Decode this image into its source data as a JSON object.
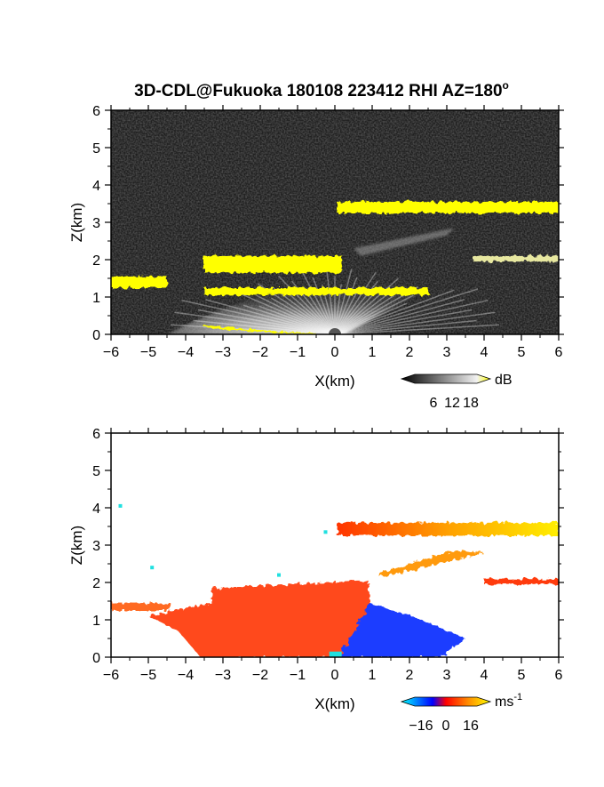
{
  "title": "3D-CDL@Fukuoka 180108 223412 RHI AZ=180",
  "title_superscript": "o",
  "chart_data": [
    {
      "type": "heatmap",
      "panel": "reflectivity",
      "xlabel": "X(km)",
      "ylabel": "Z(km)",
      "xlim": [
        -6,
        6
      ],
      "ylim": [
        0,
        6
      ],
      "xticks": [
        "-6",
        "-5",
        "-4",
        "-3",
        "-2",
        "-1",
        "0",
        "1",
        "2",
        "3",
        "4",
        "5",
        "6"
      ],
      "yticks": [
        "0",
        "1",
        "2",
        "3",
        "4",
        "5",
        "6"
      ],
      "colorbar": {
        "label": "dB",
        "ticks": [
          "6",
          "12",
          "18"
        ],
        "range": [
          0,
          20
        ],
        "colors": [
          "#000000",
          "#ffffff",
          "#ffff00"
        ]
      },
      "features": [
        {
          "kind": "layer",
          "x": [
            0.05,
            6.0
          ],
          "z": [
            3.25,
            3.55
          ],
          "value_db": 20
        },
        {
          "kind": "layer",
          "x": [
            -3.5,
            0.2
          ],
          "z": [
            1.65,
            2.1
          ],
          "value_db": 20
        },
        {
          "kind": "layer",
          "x": [
            -6.0,
            -4.5
          ],
          "z": [
            1.25,
            1.55
          ],
          "value_db": 20
        },
        {
          "kind": "layer",
          "x": [
            3.7,
            6.0
          ],
          "z": [
            1.95,
            2.1
          ],
          "value_db": 17
        },
        {
          "kind": "layer",
          "x": [
            -3.5,
            2.5
          ],
          "z": [
            1.05,
            1.25
          ],
          "value_db": 18
        },
        {
          "kind": "layer",
          "x": [
            -3.5,
            -0.5
          ],
          "z": [
            0.0,
            0.25
          ],
          "value_db": 18
        },
        {
          "kind": "fan",
          "x": [
            -4.5,
            2.5
          ],
          "z": [
            0.0,
            1.3
          ],
          "value_db": 12
        }
      ]
    },
    {
      "type": "heatmap",
      "panel": "doppler_velocity",
      "xlabel": "X(km)",
      "ylabel": "Z(km)",
      "xlim": [
        -6,
        6
      ],
      "ylim": [
        0,
        6
      ],
      "xticks": [
        "-6",
        "-5",
        "-4",
        "-3",
        "-2",
        "-1",
        "0",
        "1",
        "2",
        "3",
        "4",
        "5",
        "6"
      ],
      "yticks": [
        "0",
        "1",
        "2",
        "3",
        "4",
        "5",
        "6"
      ],
      "colorbar": {
        "label": "ms",
        "label_superscript": "-1",
        "ticks": [
          "-16",
          "0",
          "16"
        ],
        "range": [
          -20,
          20
        ],
        "colors": [
          "#00ffff",
          "#0000ff",
          "#ff0000",
          "#ffff00"
        ]
      },
      "features": [
        {
          "kind": "layer",
          "x": [
            0.05,
            6.0
          ],
          "z": [
            3.25,
            3.6
          ],
          "velocity": [
            2,
            18
          ]
        },
        {
          "kind": "layer",
          "x": [
            1.2,
            4.0
          ],
          "z": [
            2.2,
            2.8
          ],
          "velocity": [
            6,
            10
          ]
        },
        {
          "kind": "layer",
          "x": [
            4.0,
            6.0
          ],
          "z": [
            1.95,
            2.1
          ],
          "velocity": [
            3,
            3
          ]
        },
        {
          "kind": "region",
          "x": [
            -5.0,
            1.0
          ],
          "z": [
            0.0,
            1.9
          ],
          "velocity": [
            2,
            6
          ]
        },
        {
          "kind": "region",
          "x": [
            0.0,
            3.5
          ],
          "z": [
            0.0,
            1.5
          ],
          "velocity": [
            -10,
            -6
          ]
        }
      ]
    }
  ]
}
